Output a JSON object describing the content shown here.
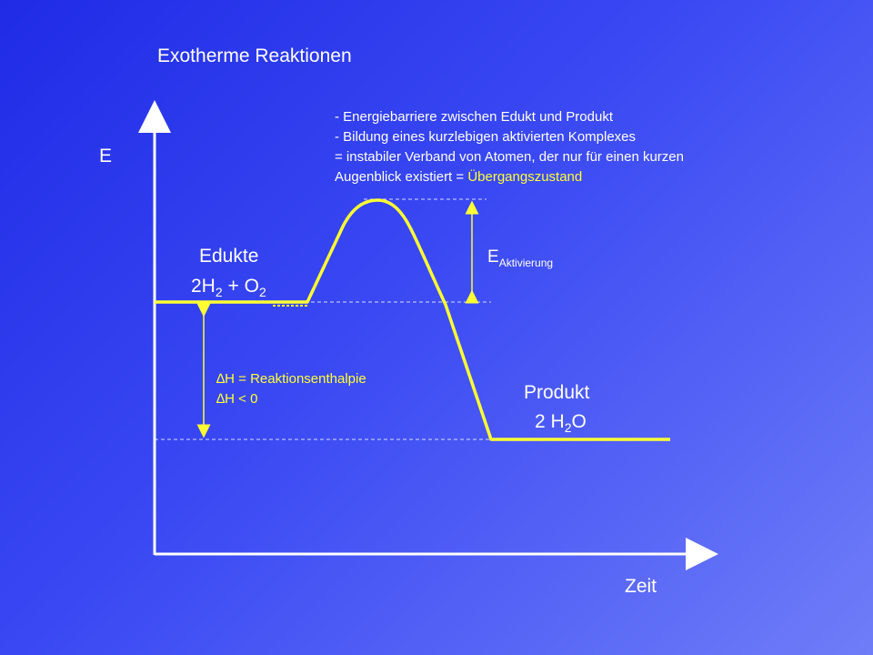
{
  "title": "Exotherme Reaktionen",
  "axes": {
    "y_label": "E",
    "x_label": "Zeit"
  },
  "notes": {
    "line1": "-  Energiebarriere zwischen Edukt und Produkt",
    "line2": "-  Bildung eines kurzlebigen aktivierten Komplexes",
    "line3": "= instabiler Verband von Atomen, der nur für einen kurzen",
    "line4_prefix": "Augenblick existiert = ",
    "line4_highlight": "Übergangszustand"
  },
  "edukte": {
    "label": "Edukte",
    "formula_a": "2H",
    "formula_a_sub": "2",
    "formula_b": " + O",
    "formula_b_sub": "2"
  },
  "produkt": {
    "label": "Produkt",
    "formula_a": "2 H",
    "formula_a_sub": "2",
    "formula_b": "O"
  },
  "activation": {
    "label": "E",
    "label_sub": "Aktivierung"
  },
  "enthalpy": {
    "line1": "∆H = Reaktionsenthalpie",
    "line2": "∆H < 0"
  },
  "colors": {
    "curve": "#ffff33",
    "axes": "#ffffff",
    "dashed": "#ffffff",
    "highlight": "#ffff33"
  }
}
